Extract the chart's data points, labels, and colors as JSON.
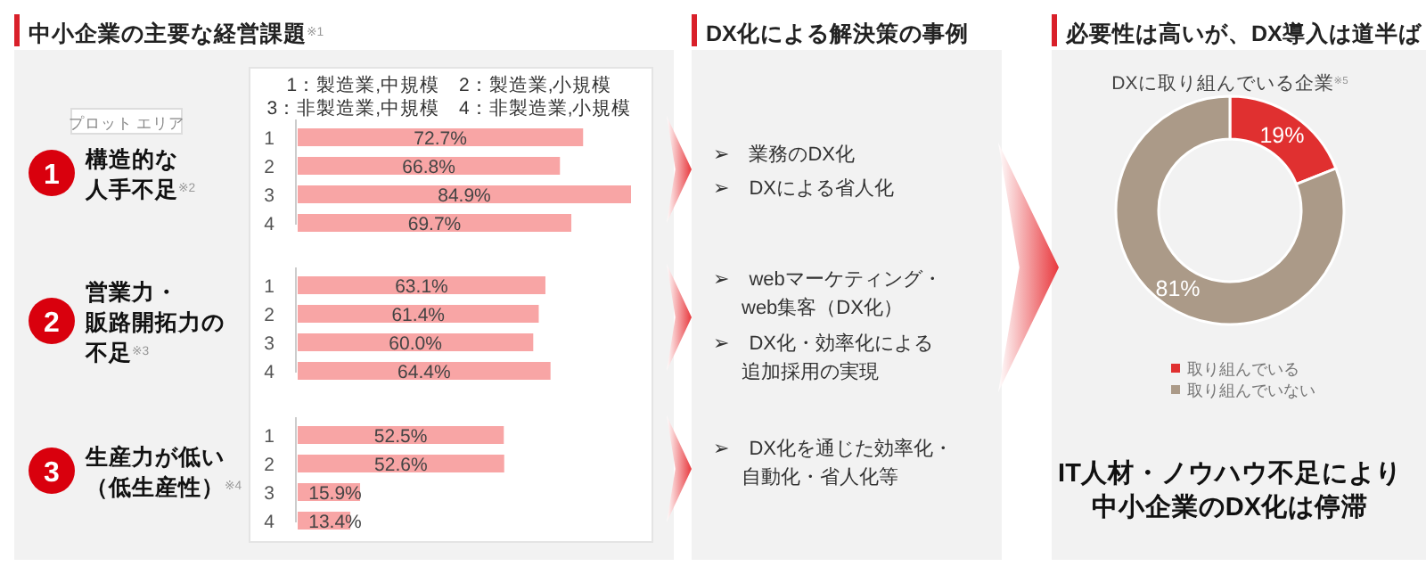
{
  "chart_data": [
    {
      "type": "other",
      "title": "中小企業の主要な経営課題$^{※1}$",
      "annotations": [
        "1：製造業,中規模　2：製造業,小規模",
        "3：非製造業,中規模　4：非製造業,小規模",
        "プロット エリア"
      ]
    },
    {
      "type": "bar",
      "orientation": "horizontal",
      "title": "構造的な人手不足$^{※2}$",
      "annotations": [
        "1"
      ],
      "categories": [
        "1",
        "2",
        "3",
        "4"
      ],
      "color": "#f8a5a5",
      "values": [
        72.7,
        66.8,
        84.9,
        69.7
      ],
      "value_labels": [
        "72.7%",
        "66.8%",
        "84.9%",
        "69.7%"
      ]
    },
    {
      "type": "bar",
      "orientation": "horizontal",
      "title": "営業力・販路開拓力の不足$^{※3}$",
      "annotations": [
        "2"
      ],
      "categories": [
        "1",
        "2",
        "3",
        "4"
      ],
      "color": "#f8a5a5",
      "values": [
        63.1,
        61.4,
        60.0,
        64.4
      ],
      "value_labels": [
        "63.1%",
        "61.4%",
        "60.0%",
        "64.4%"
      ]
    },
    {
      "type": "bar",
      "orientation": "horizontal",
      "title": "生産力が低い（低生産性）$^{※4}$",
      "annotations": [
        "3"
      ],
      "categories": [
        "1",
        "2",
        "3",
        "4"
      ],
      "color": "#f8a5a5",
      "values": [
        52.5,
        52.6,
        15.9,
        13.4
      ],
      "value_labels": [
        "52.5%",
        "52.6%",
        "15.9%",
        "13.4%"
      ]
    },
    {
      "type": "other",
      "title": "DX化による解決策の事例",
      "annotations": [
        "➢　業務のDX化",
        "➢　DXによる省人化",
        "➢　webマーケティング・",
        "web集客（DX化）",
        "➢　DX化・効率化による",
        "追加採用の実現",
        "➢　DX化を通じた効率化・",
        "自動化・省人化等"
      ]
    },
    {
      "type": "donut",
      "title": "必要性は高いが、DX導入は道半ば",
      "subtitle": "DXに取り組んでいる企業$^{※5}$",
      "categories": [
        "取り組んでいる",
        "取り組んでいない"
      ],
      "values": [
        19,
        81
      ],
      "colors": [
        "#e03030",
        "#ab9a88"
      ],
      "value_labels": [
        "19%",
        "81%"
      ],
      "legend": "bottom",
      "annotations": [
        "IT人材・ノウハウ不足により",
        "中小企業のDX化は停滞"
      ]
    }
  ]
}
